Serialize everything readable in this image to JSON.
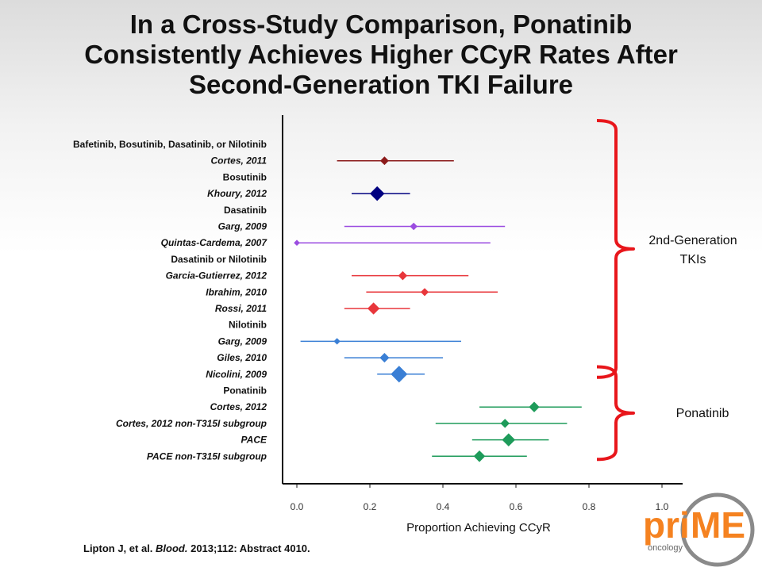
{
  "title": {
    "line1": "In a Cross-Study Comparison, Ponatinib",
    "line2": "Consistently Achieves Higher CCyR Rates After",
    "line3": "Second-Generation TKI Failure"
  },
  "citation": {
    "authors": "Lipton J, et al.",
    "journal": "Blood.",
    "rest": "2013;112: Abstract 4010."
  },
  "logo": {
    "text_pri": "pri",
    "text_me": "ME",
    "subtext": "oncology"
  },
  "colors": {
    "bracket": "#e8161b",
    "axis": "#111111"
  },
  "chart_data": {
    "type": "forest",
    "xlabel": "Proportion Achieving CCyR",
    "xlim": [
      0.0,
      1.0
    ],
    "xticks": [
      "0.0",
      "0.2",
      "0.4",
      "0.6",
      "0.8",
      "1.0"
    ],
    "rows": [
      {
        "label": "Bafetinib, Bosutinib, Dasatinib, or Nilotinib",
        "kind": "header"
      },
      {
        "label": "Cortes, 2011",
        "kind": "study",
        "estimate": 0.24,
        "ci": [
          0.11,
          0.43
        ],
        "weight": 1.0,
        "color": "#8b1a1a"
      },
      {
        "label": "Bosutinib",
        "kind": "header"
      },
      {
        "label": "Khoury, 2012",
        "kind": "study",
        "estimate": 0.22,
        "ci": [
          0.15,
          0.31
        ],
        "weight": 2.2,
        "color": "#000080"
      },
      {
        "label": "Dasatinib",
        "kind": "header"
      },
      {
        "label": "Garg, 2009",
        "kind": "study",
        "estimate": 0.32,
        "ci": [
          0.13,
          0.57
        ],
        "weight": 0.8,
        "color": "#9b4de0"
      },
      {
        "label": "Quintas-Cardema, 2007",
        "kind": "study",
        "estimate": 0.0,
        "ci": [
          0.0,
          0.53
        ],
        "weight": 0.5,
        "color": "#9b4de0"
      },
      {
        "label": "Dasatinib or Nilotinib",
        "kind": "header"
      },
      {
        "label": "Garcia-Gutierrez, 2012",
        "kind": "study",
        "estimate": 0.29,
        "ci": [
          0.15,
          0.47
        ],
        "weight": 1.1,
        "color": "#e8363b"
      },
      {
        "label": "Ibrahim, 2010",
        "kind": "study",
        "estimate": 0.35,
        "ci": [
          0.19,
          0.55
        ],
        "weight": 0.9,
        "color": "#e8363b"
      },
      {
        "label": "Rossi, 2011",
        "kind": "study",
        "estimate": 0.21,
        "ci": [
          0.13,
          0.31
        ],
        "weight": 1.7,
        "color": "#e8363b"
      },
      {
        "label": "Nilotinib",
        "kind": "header"
      },
      {
        "label": "Garg, 2009",
        "kind": "study",
        "estimate": 0.11,
        "ci": [
          0.01,
          0.45
        ],
        "weight": 0.6,
        "color": "#3a7fd5"
      },
      {
        "label": "Giles, 2010",
        "kind": "study",
        "estimate": 0.24,
        "ci": [
          0.13,
          0.4
        ],
        "weight": 1.2,
        "color": "#3a7fd5"
      },
      {
        "label": "Nicolini, 2009",
        "kind": "study",
        "estimate": 0.28,
        "ci": [
          0.22,
          0.35
        ],
        "weight": 2.6,
        "color": "#3a7fd5"
      },
      {
        "label": "Ponatinib",
        "kind": "header"
      },
      {
        "label": "Cortes, 2012",
        "kind": "study",
        "estimate": 0.65,
        "ci": [
          0.5,
          0.78
        ],
        "weight": 1.4,
        "color": "#1e9b5a"
      },
      {
        "label": "Cortes, 2012 non-T315I subgroup",
        "kind": "study",
        "estimate": 0.57,
        "ci": [
          0.38,
          0.74
        ],
        "weight": 1.1,
        "color": "#1e9b5a"
      },
      {
        "label": "PACE",
        "kind": "study",
        "estimate": 0.58,
        "ci": [
          0.48,
          0.69
        ],
        "weight": 1.9,
        "color": "#1e9b5a"
      },
      {
        "label": "PACE non-T315I subgroup",
        "kind": "study",
        "estimate": 0.5,
        "ci": [
          0.37,
          0.63
        ],
        "weight": 1.6,
        "color": "#1e9b5a"
      }
    ],
    "groups": [
      {
        "label_line1": "2nd-Generation",
        "label_line2": "TKIs",
        "from_row": 0,
        "to_row": 14
      },
      {
        "label_line1": "Ponatinib",
        "label_line2": "",
        "from_row": 15,
        "to_row": 19
      }
    ]
  }
}
